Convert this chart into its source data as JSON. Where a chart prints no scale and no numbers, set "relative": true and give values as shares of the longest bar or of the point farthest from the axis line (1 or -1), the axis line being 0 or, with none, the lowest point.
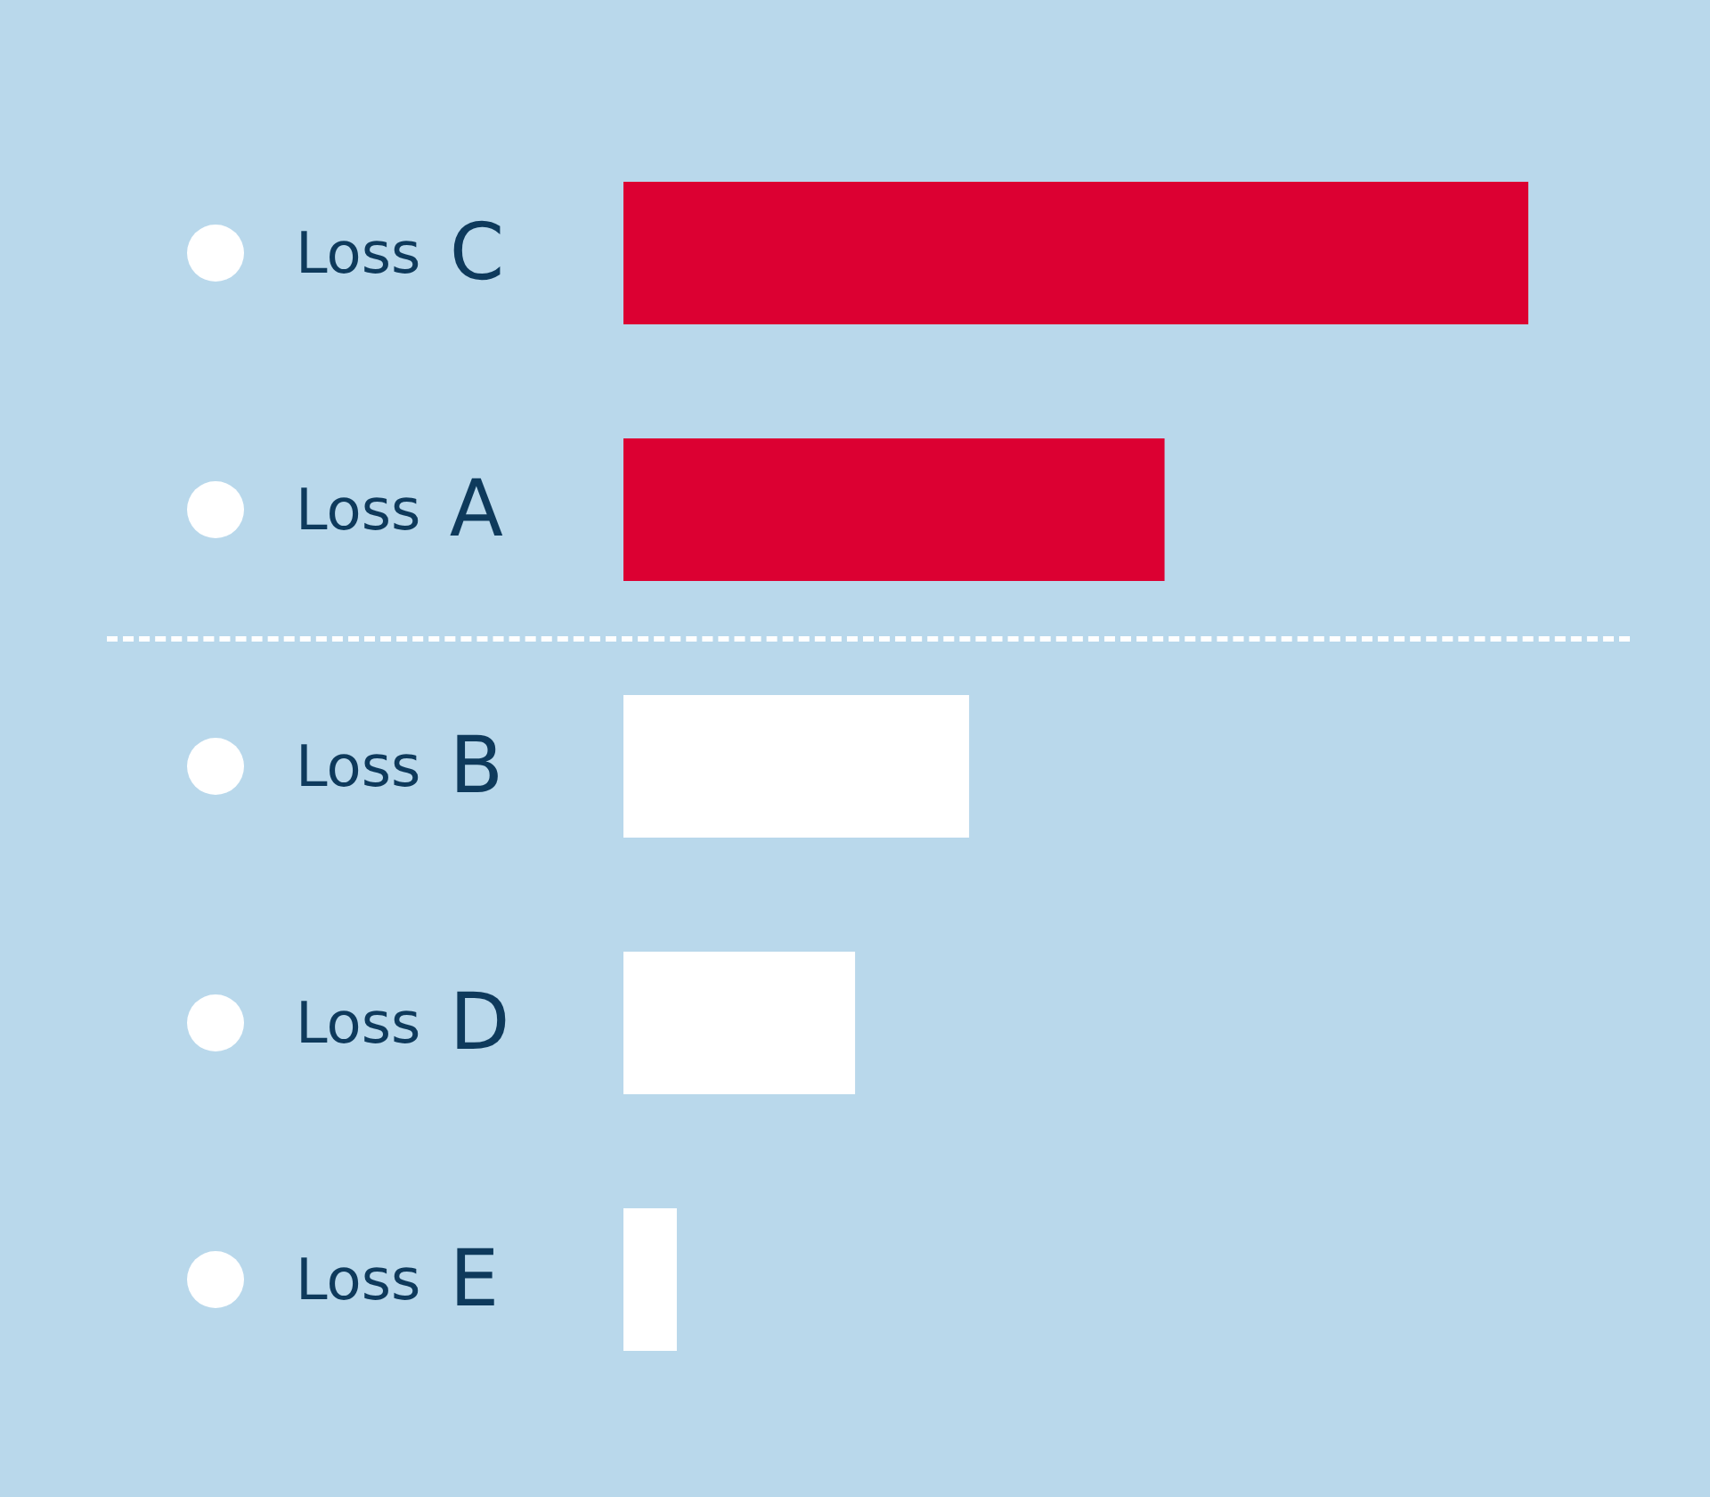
{
  "chart_data": {
    "type": "bar",
    "orientation": "horizontal",
    "relative": true,
    "categories": [
      "Loss C",
      "Loss A",
      "Loss B",
      "Loss D",
      "Loss E"
    ],
    "values": [
      1,
      0.598,
      0.382,
      0.256,
      0.059
    ],
    "colors": [
      "#dc0032",
      "#dc0032",
      "#ffffff",
      "#ffffff",
      "#ffffff"
    ]
  }
}
